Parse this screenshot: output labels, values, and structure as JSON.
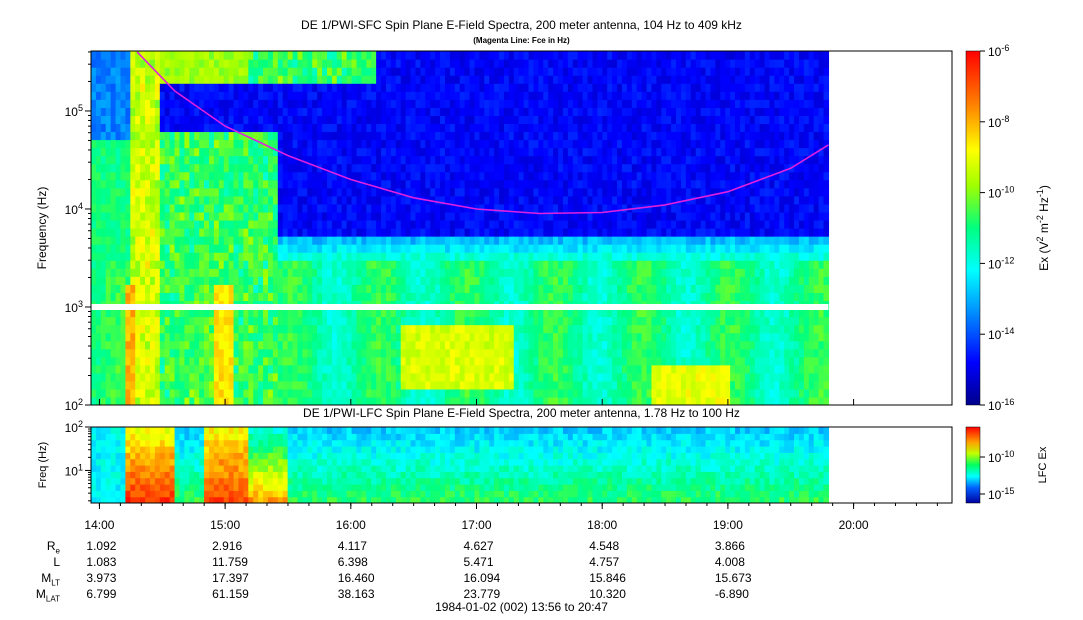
{
  "chart_data": [
    {
      "type": "heatmap",
      "title": "DE 1/PWI-SFC  Spin Plane E-Field Spectra, 200 meter antenna, 104 Hz to 409 kHz",
      "subtitle": "(Magenta Line: Fce in Hz)",
      "ylabel": "Frequency (Hz)",
      "yscale": "log",
      "ylim": [
        100,
        409000
      ],
      "yticks": [
        "10^2",
        "10^3",
        "10^4",
        "10^5"
      ],
      "colorbar": {
        "label": "Ex (V^2 m^-2 Hz^-1)",
        "scale": "log",
        "range": [
          1e-16,
          1e-06
        ],
        "ticks": [
          "10^-16",
          "10^-14",
          "10^-12",
          "10^-10",
          "10^-8",
          "10^-6"
        ]
      },
      "fce_line": {
        "name": "Fce",
        "x_hours": [
          14.3,
          14.6,
          15.0,
          15.5,
          16.0,
          16.5,
          17.0,
          17.5,
          18.0,
          18.5,
          19.0,
          19.5,
          19.8
        ],
        "y_hz": [
          400000,
          160000,
          70000,
          35000,
          20000,
          13000,
          10000,
          9000,
          9200,
          11000,
          15000,
          26000,
          45000
        ]
      }
    },
    {
      "type": "heatmap",
      "title": "DE 1/PWI-LFC  Spin Plane E-Field Spectra, 200 meter antenna, 1.78 Hz to 100 Hz",
      "ylabel": "Freq (Hz)",
      "yscale": "log",
      "ylim": [
        1.78,
        100
      ],
      "yticks": [
        "10^1",
        "10^2"
      ],
      "colorbar": {
        "label": "LFC Ex",
        "scale": "log",
        "ticks": [
          "10^-15",
          "10^-10"
        ]
      }
    }
  ],
  "x_axis": {
    "tick_labels": [
      "14:00",
      "15:00",
      "16:00",
      "17:00",
      "18:00",
      "19:00",
      "20:00"
    ],
    "tick_hours": [
      14,
      15,
      16,
      17,
      18,
      19,
      20
    ],
    "range_hours": [
      13.933,
      20.783
    ],
    "data_end_hours": 19.8
  },
  "ephemeris": {
    "labels": [
      {
        "main": "R",
        "sub": "e"
      },
      {
        "main": "L",
        "sub": ""
      },
      {
        "main": "M",
        "sub": "LT"
      },
      {
        "main": "M",
        "sub": "LAT"
      }
    ],
    "rows": [
      [
        "1.092",
        "2.916",
        "4.117",
        "4.627",
        "4.548",
        "3.866"
      ],
      [
        "1.083",
        "11.759",
        "6.398",
        "5.471",
        "4.757",
        "4.008"
      ],
      [
        "3.973",
        "17.397",
        "16.460",
        "16.094",
        "15.846",
        "15.673"
      ],
      [
        "6.799",
        "61.159",
        "38.163",
        "23.779",
        "10.320",
        "-6.890"
      ]
    ]
  },
  "footer": "1984-01-02 (002) 13:56 to 20:47",
  "colors": {
    "fce_line": "#e020e0",
    "background_low": "#00008b"
  }
}
